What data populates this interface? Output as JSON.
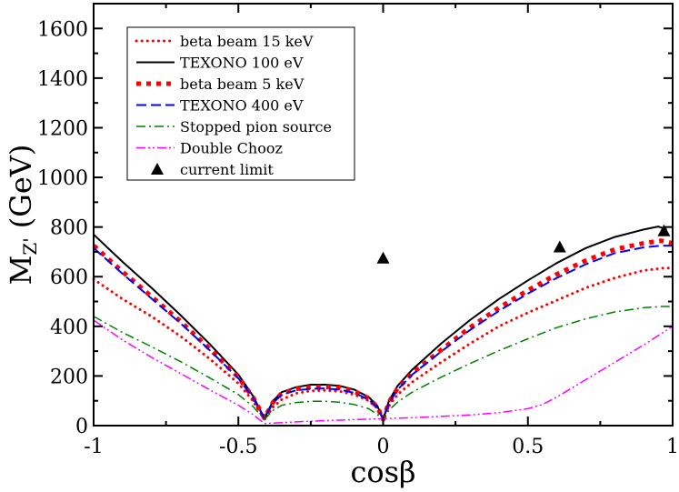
{
  "chart_data": {
    "type": "line",
    "xlabel": "cosβ",
    "ylabel": "M",
    "ylabel_sub": "Z'",
    "ylabel_tail": "(GeV)",
    "xlim": [
      -1,
      1
    ],
    "ylim": [
      0,
      1700
    ],
    "xticks": [
      -1,
      -0.5,
      0,
      0.5,
      1
    ],
    "xtick_labels": [
      "-1",
      "-0.5",
      "0",
      "0.5",
      "1"
    ],
    "yticks": [
      0,
      200,
      400,
      600,
      800,
      1000,
      1200,
      1400,
      1600
    ],
    "ytick_labels": [
      "0",
      "200",
      "400",
      "600",
      "800",
      "1000",
      "1200",
      "1400",
      "1600"
    ],
    "grid": false,
    "legend_position": "top-left",
    "series": [
      {
        "name": "beta beam 15 keV",
        "color": "#ff0000",
        "style": "dotted",
        "x": [
          -1,
          -0.9,
          -0.8,
          -0.7,
          -0.6,
          -0.5,
          -0.45,
          -0.41,
          -0.38,
          -0.35,
          -0.3,
          -0.25,
          -0.2,
          -0.15,
          -0.1,
          -0.05,
          -0.02,
          0,
          0.02,
          0.05,
          0.1,
          0.2,
          0.3,
          0.4,
          0.5,
          0.6,
          0.7,
          0.8,
          0.9,
          0.97,
          1.0
        ],
        "y": [
          590,
          510,
          440,
          360,
          270,
          170,
          100,
          25,
          75,
          105,
          130,
          140,
          142,
          138,
          125,
          100,
          70,
          30,
          80,
          125,
          175,
          255,
          330,
          400,
          455,
          505,
          555,
          595,
          625,
          635,
          635
        ]
      },
      {
        "name": "TEXONO 100 eV",
        "color": "#000000",
        "style": "solid",
        "x": [
          -1,
          -0.9,
          -0.8,
          -0.7,
          -0.6,
          -0.5,
          -0.45,
          -0.41,
          -0.38,
          -0.35,
          -0.3,
          -0.25,
          -0.2,
          -0.15,
          -0.1,
          -0.05,
          -0.02,
          0,
          0.02,
          0.05,
          0.1,
          0.2,
          0.3,
          0.4,
          0.5,
          0.6,
          0.7,
          0.8,
          0.9,
          0.95,
          0.98
        ],
        "y": [
          770,
          660,
          555,
          445,
          330,
          205,
          120,
          30,
          100,
          135,
          155,
          165,
          165,
          160,
          145,
          115,
          80,
          25,
          100,
          160,
          225,
          330,
          425,
          510,
          585,
          655,
          715,
          760,
          790,
          802,
          790
        ]
      },
      {
        "name": "beta beam 5 keV",
        "color": "#ff0000",
        "style": "square-dotted",
        "x": [
          -1,
          -0.9,
          -0.8,
          -0.7,
          -0.6,
          -0.5,
          -0.45,
          -0.41,
          -0.38,
          -0.35,
          -0.3,
          -0.25,
          -0.2,
          -0.15,
          -0.1,
          -0.05,
          -0.02,
          0,
          0.02,
          0.05,
          0.1,
          0.2,
          0.3,
          0.4,
          0.5,
          0.6,
          0.7,
          0.8,
          0.9,
          0.96,
          1.0
        ],
        "y": [
          725,
          620,
          520,
          420,
          310,
          195,
          115,
          30,
          95,
          130,
          148,
          155,
          156,
          152,
          138,
          110,
          75,
          25,
          95,
          150,
          210,
          305,
          395,
          475,
          545,
          610,
          665,
          710,
          735,
          745,
          735
        ]
      },
      {
        "name": "TEXONO 400 eV",
        "color": "#0000ff",
        "style": "dashed",
        "x": [
          -1,
          -0.9,
          -0.8,
          -0.7,
          -0.6,
          -0.5,
          -0.45,
          -0.41,
          -0.38,
          -0.35,
          -0.3,
          -0.25,
          -0.2,
          -0.15,
          -0.1,
          -0.05,
          -0.02,
          0,
          0.02,
          0.05,
          0.1,
          0.2,
          0.3,
          0.4,
          0.5,
          0.6,
          0.7,
          0.8,
          0.9,
          0.96,
          1.0
        ],
        "y": [
          715,
          612,
          512,
          412,
          305,
          190,
          112,
          30,
          92,
          125,
          142,
          148,
          150,
          145,
          132,
          105,
          72,
          25,
          90,
          145,
          205,
          298,
          385,
          462,
          532,
          595,
          650,
          695,
          718,
          725,
          725
        ]
      },
      {
        "name": "Stopped pion source",
        "color": "#008000",
        "style": "dash-dot",
        "x": [
          -1,
          -0.9,
          -0.8,
          -0.7,
          -0.6,
          -0.5,
          -0.45,
          -0.41,
          -0.38,
          -0.35,
          -0.3,
          -0.25,
          -0.2,
          -0.15,
          -0.1,
          -0.05,
          -0.02,
          0,
          0.02,
          0.05,
          0.1,
          0.2,
          0.3,
          0.4,
          0.5,
          0.6,
          0.7,
          0.8,
          0.9,
          0.96,
          1.0
        ],
        "y": [
          440,
          375,
          318,
          258,
          193,
          125,
          78,
          25,
          62,
          82,
          93,
          98,
          98,
          94,
          85,
          68,
          45,
          20,
          62,
          95,
          135,
          195,
          250,
          302,
          350,
          395,
          430,
          458,
          475,
          480,
          480
        ]
      },
      {
        "name": "Double Chooz",
        "color": "#ff00ff",
        "style": "dash-dot-dot",
        "x": [
          -1,
          -0.9,
          -0.8,
          -0.7,
          -0.6,
          -0.5,
          -0.45,
          -0.41,
          -0.35,
          -0.3,
          -0.2,
          -0.1,
          0,
          0.1,
          0.2,
          0.3,
          0.4,
          0.5,
          0.55,
          0.6,
          0.7,
          0.8,
          0.9,
          1.0
        ],
        "y": [
          425,
          345,
          275,
          210,
          145,
          82,
          45,
          8,
          12,
          15,
          20,
          24,
          28,
          32,
          37,
          43,
          52,
          68,
          85,
          115,
          185,
          255,
          325,
          400
        ]
      }
    ],
    "points": {
      "name": "current limit",
      "color": "#000000",
      "marker": "triangle",
      "x": [
        0,
        0.61,
        0.97
      ],
      "y": [
        675,
        720,
        785
      ]
    }
  }
}
